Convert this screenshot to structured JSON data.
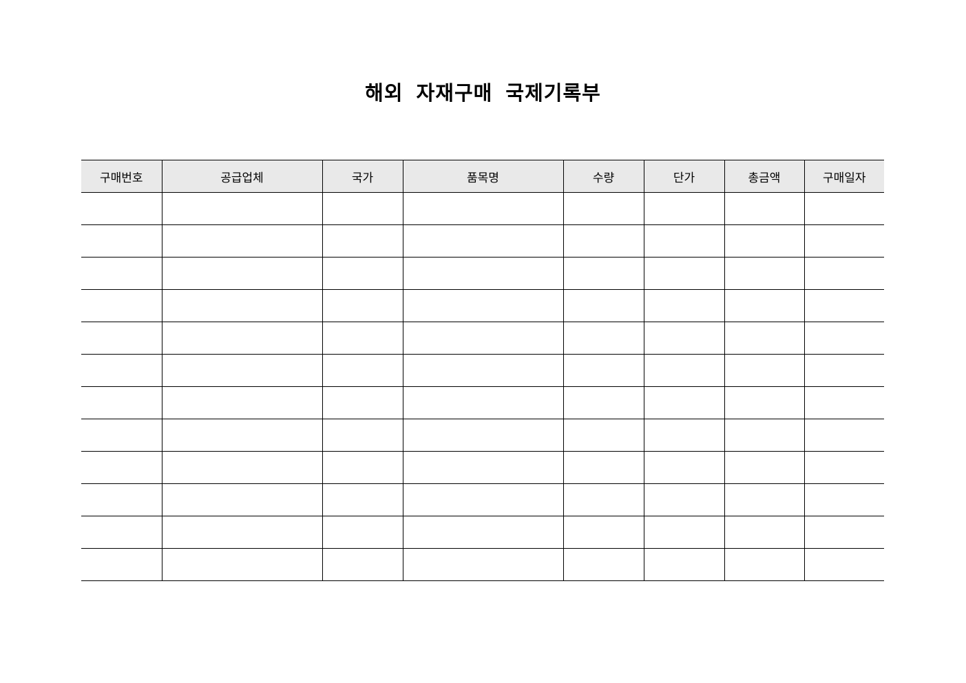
{
  "document": {
    "title": "해외 자재구매 국제기록부"
  },
  "table": {
    "headers": [
      "구매번호",
      "공급업체",
      "국가",
      "품목명",
      "수량",
      "단가",
      "총금액",
      "구매일자"
    ],
    "rows": [
      [
        "",
        "",
        "",
        "",
        "",
        "",
        "",
        ""
      ],
      [
        "",
        "",
        "",
        "",
        "",
        "",
        "",
        ""
      ],
      [
        "",
        "",
        "",
        "",
        "",
        "",
        "",
        ""
      ],
      [
        "",
        "",
        "",
        "",
        "",
        "",
        "",
        ""
      ],
      [
        "",
        "",
        "",
        "",
        "",
        "",
        "",
        ""
      ],
      [
        "",
        "",
        "",
        "",
        "",
        "",
        "",
        ""
      ],
      [
        "",
        "",
        "",
        "",
        "",
        "",
        "",
        ""
      ],
      [
        "",
        "",
        "",
        "",
        "",
        "",
        "",
        ""
      ],
      [
        "",
        "",
        "",
        "",
        "",
        "",
        "",
        ""
      ],
      [
        "",
        "",
        "",
        "",
        "",
        "",
        "",
        ""
      ],
      [
        "",
        "",
        "",
        "",
        "",
        "",
        "",
        ""
      ],
      [
        "",
        "",
        "",
        "",
        "",
        "",
        "",
        ""
      ]
    ]
  }
}
